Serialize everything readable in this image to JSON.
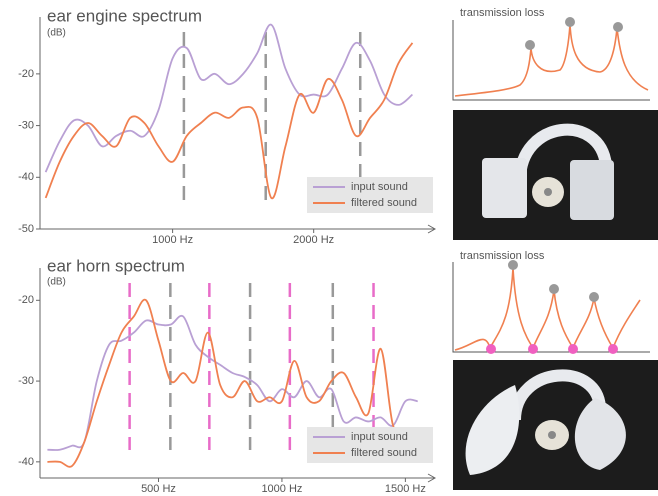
{
  "chart_data": [
    {
      "type": "line",
      "title": "ear engine spectrum",
      "y_label": "(dB)",
      "x": [
        100,
        200,
        300,
        400,
        500,
        600,
        700,
        800,
        900,
        1000,
        1100,
        1200,
        1300,
        1400,
        1500,
        1600,
        1700,
        1800,
        1900,
        2000,
        2100,
        2200,
        2300,
        2400,
        2500,
        2600,
        2700
      ],
      "series": [
        {
          "name": "input sound",
          "color": "#b9a0d4",
          "values": [
            -39,
            -33,
            -29,
            -30,
            -34,
            -32,
            -31,
            -32,
            -27,
            -17,
            -15,
            -21,
            -20,
            -22,
            -20,
            -16,
            -10.5,
            -19,
            -24,
            -24,
            -24,
            -19,
            -14,
            -17.5,
            -24,
            -26,
            -24
          ]
        },
        {
          "name": "filtered sound",
          "color": "#f08050",
          "values": [
            -44,
            -37,
            -32,
            -29.5,
            -32,
            -34,
            -28.5,
            -29.5,
            -34,
            -37,
            -32,
            -29.5,
            -27.5,
            -28.5,
            -26.5,
            -28.5,
            -44,
            -34,
            -24,
            -27.5,
            -21,
            -25,
            -32,
            -28.5,
            -25,
            -18,
            -14
          ]
        }
      ],
      "marker_groups": [
        {
          "color": "#999999",
          "x": [
            1080,
            1660,
            2330
          ]
        }
      ],
      "xlim": [
        60,
        2860
      ],
      "xticks": [
        {
          "value": 1000,
          "label": "1000 Hz"
        },
        {
          "value": 2000,
          "label": "2000 Hz"
        }
      ],
      "ylim": [
        -50,
        -9
      ],
      "yticks": [
        -50,
        -40,
        -30,
        -20
      ]
    },
    {
      "type": "line",
      "title": "ear horn spectrum",
      "y_label": "(dB)",
      "x": [
        50,
        100,
        150,
        200,
        250,
        300,
        350,
        400,
        450,
        500,
        550,
        600,
        650,
        700,
        750,
        800,
        850,
        900,
        950,
        1000,
        1050,
        1100,
        1150,
        1200,
        1250,
        1300,
        1350,
        1400,
        1450,
        1500,
        1550
      ],
      "series": [
        {
          "name": "input sound",
          "color": "#b9a0d4",
          "values": [
            -38.5,
            -38.5,
            -38,
            -37.5,
            -30,
            -25.5,
            -25,
            -24,
            -22.5,
            -23,
            -23,
            -22,
            -25.5,
            -27,
            -28,
            -29,
            -29.5,
            -30.5,
            -32.5,
            -31,
            -32,
            -30,
            -32,
            -31,
            -35,
            -34.5,
            -35,
            -34.5,
            -35.5,
            -32.5,
            -32.5
          ]
        },
        {
          "name": "filtered sound",
          "color": "#f08050",
          "values": [
            -40,
            -40,
            -40.5,
            -37.5,
            -32.5,
            -28,
            -24,
            -22,
            -20,
            -25,
            -30,
            -29,
            -30,
            -24,
            -30.5,
            -32,
            -30,
            -32.5,
            -32,
            -32.5,
            -27.5,
            -32,
            -32.5,
            -30,
            -29,
            -32,
            -34,
            -26,
            -35.5,
            -36,
            -36
          ]
        }
      ],
      "marker_groups": [
        {
          "color": "#999999",
          "x": [
            548,
            871,
            1206
          ]
        },
        {
          "color": "#e86cc8",
          "x": [
            383,
            706,
            1032,
            1371
          ]
        }
      ],
      "xlim": [
        20,
        1620
      ],
      "xticks": [
        {
          "value": 500,
          "label": "500 Hz"
        },
        {
          "value": 1000,
          "label": "1000 Hz"
        },
        {
          "value": 1500,
          "label": "1500 Hz"
        }
      ],
      "ylim": [
        -42,
        -16
      ],
      "yticks": [
        -40,
        -30,
        -20
      ]
    }
  ],
  "insets": [
    {
      "label": "transmission loss"
    },
    {
      "label": "transmission loss"
    }
  ]
}
